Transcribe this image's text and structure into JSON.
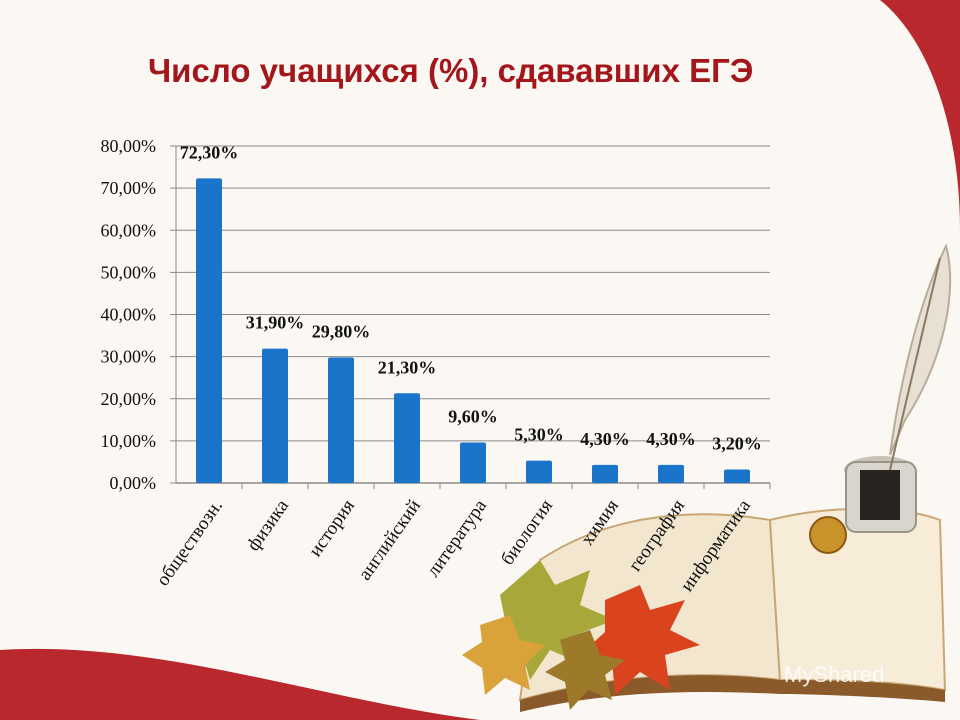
{
  "slide": {
    "title": "Число учащихся (%), сдававших ЕГЭ",
    "watermark": "MyShared"
  },
  "colors": {
    "bar": "#1a74c9",
    "title": "#a3161b",
    "background_red": "#b8282c",
    "slide": "#fbf8f4"
  },
  "chart_data": {
    "type": "bar",
    "title": "",
    "xlabel": "",
    "ylabel": "",
    "categories": [
      "обществозн.",
      "физика",
      "история",
      "английский",
      "литература",
      "биология",
      "химия",
      "география",
      "информатика"
    ],
    "values": [
      72.3,
      31.9,
      29.8,
      21.3,
      9.6,
      5.3,
      4.3,
      4.3,
      3.2
    ],
    "value_labels": [
      "72,30%",
      "31,90%",
      "29,80%",
      "21,30%",
      "9,60%",
      "5,30%",
      "4,30%",
      "4,30%",
      "3,20%"
    ],
    "ylim": [
      0,
      80
    ],
    "yticks": [
      0,
      10,
      20,
      30,
      40,
      50,
      60,
      70,
      80
    ],
    "ytick_labels": [
      "0,00%",
      "10,00%",
      "20,00%",
      "30,00%",
      "40,00%",
      "50,00%",
      "60,00%",
      "70,00%",
      "80,00%"
    ],
    "grid": true,
    "legend": "none"
  }
}
